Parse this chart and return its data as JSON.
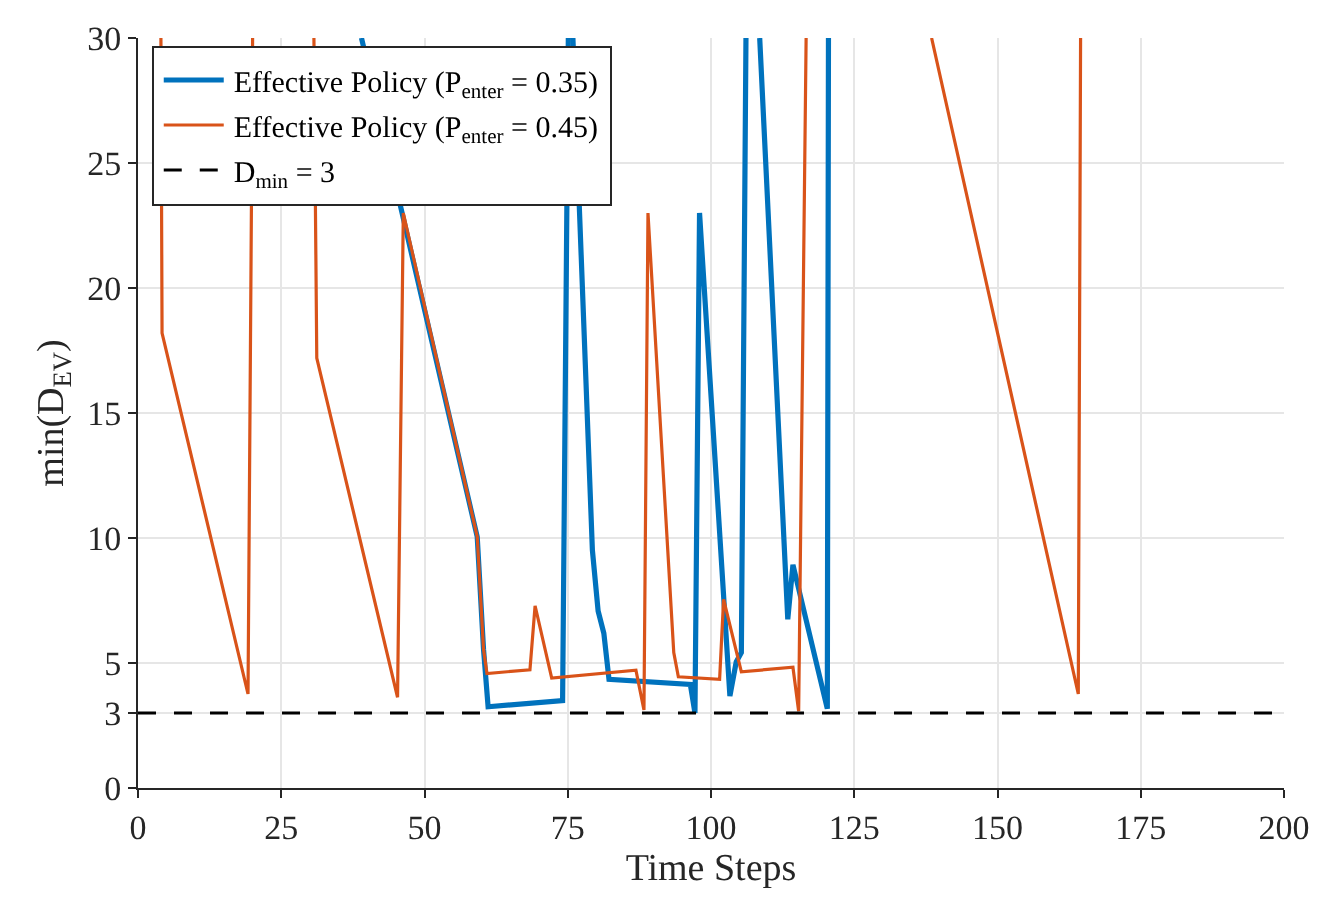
{
  "chart_data": {
    "type": "line",
    "xlabel": "Time Steps",
    "ylabel": "min(D$_{EV}$)",
    "xlim": [
      0,
      200
    ],
    "xticks": [
      0,
      25,
      50,
      75,
      100,
      125,
      150,
      175,
      200
    ],
    "ylim": [
      0,
      30
    ],
    "yticks": [
      0,
      3,
      5,
      10,
      15,
      20,
      25,
      30
    ],
    "grid": true,
    "legend": "top left",
    "line_style": "solid",
    "marker": "none",
    "series": [
      {
        "name": "Effective Policy (P$_{enter}$ = 0.35)",
        "color": "#0072bd",
        "x": [
          39,
          59.2,
          60.3,
          61.1,
          74.1,
          75.1,
          75.5,
          75.9,
          79.3,
          80.3,
          81.3,
          82.2,
          96.4,
          97.2,
          98.0,
          103.3,
          104.4,
          105.3,
          106.1,
          107,
          108.5,
          113.4,
          114.3,
          120.3,
          120.5
        ],
        "values": [
          30,
          10.05,
          5.55,
          3.25,
          3.5,
          30,
          null,
          30,
          9.52,
          7.08,
          6.19,
          4.35,
          4.14,
          3.0,
          23.0,
          3.68,
          5.04,
          5.42,
          30,
          null,
          30,
          6.75,
          8.93,
          3.17,
          30
        ]
      },
      {
        "name": "Effective Policy (P$_{enter}$ = 0.45)",
        "color": "#d95319",
        "x": [
          4.0,
          4.2,
          19.2,
          20.0,
          25,
          30.7,
          31.2,
          45.3,
          46.3,
          59.2,
          60.3,
          60.9,
          68.4,
          69.3,
          72.2,
          86.9,
          88.3,
          89.0,
          93.5,
          94.3,
          101.5,
          102.2,
          105.3,
          114.3,
          115.3,
          116.6,
          127,
          138.5,
          164.1,
          164.5
        ],
        "values": [
          30,
          18.2,
          3.76,
          30,
          null,
          30,
          17.2,
          3.63,
          23.0,
          10.05,
          5.55,
          4.58,
          4.73,
          7.29,
          4.4,
          4.71,
          3.12,
          23.0,
          5.42,
          4.45,
          4.35,
          7.55,
          4.65,
          4.83,
          3.07,
          30,
          null,
          30,
          3.76,
          30
        ]
      }
    ],
    "ref_lines": [
      {
        "axis": "y",
        "value": 3,
        "label": "D$_{min}$ = 3",
        "color": "#000000",
        "line_style": "dashed"
      }
    ]
  }
}
